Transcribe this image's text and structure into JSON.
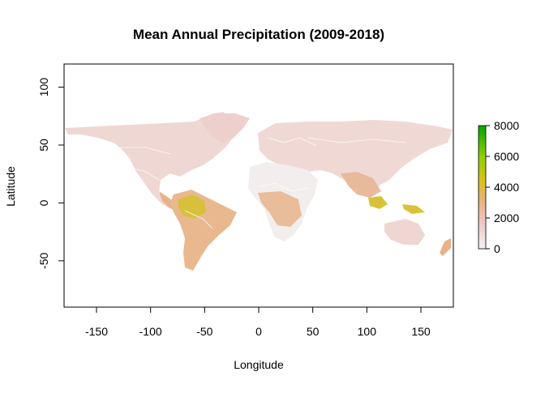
{
  "title": "Mean Annual Precipitation (2009-2018)",
  "x_axis": {
    "label": "Longitude",
    "range": [
      -180,
      180
    ],
    "ticks": [
      -150,
      -100,
      -50,
      0,
      50,
      100,
      150
    ],
    "tick_labels": [
      "-150",
      "-100",
      "-50",
      "0",
      "50",
      "100",
      "150"
    ]
  },
  "y_axis": {
    "label": "Latitude",
    "range": [
      -90,
      120
    ],
    "ticks": [
      -50,
      0,
      50,
      100
    ],
    "tick_labels": [
      "-50",
      "0",
      "50",
      "100"
    ]
  },
  "legend": {
    "range": [
      0,
      8000
    ],
    "ticks": [
      0,
      2000,
      4000,
      6000,
      8000
    ],
    "tick_labels": [
      "0",
      "2000",
      "4000",
      "6000",
      "8000"
    ],
    "colors": [
      "#f2f2f2",
      "#eec9c9",
      "#e8b07a",
      "#d9c21a",
      "#8fce00",
      "#00a600"
    ]
  },
  "colors": {
    "low_precip": "#f0d8d4",
    "mid_precip": "#e8b992",
    "high_precip": "#dcc43a",
    "desert": "#f3f0f0",
    "borders": "#ffffff"
  }
}
